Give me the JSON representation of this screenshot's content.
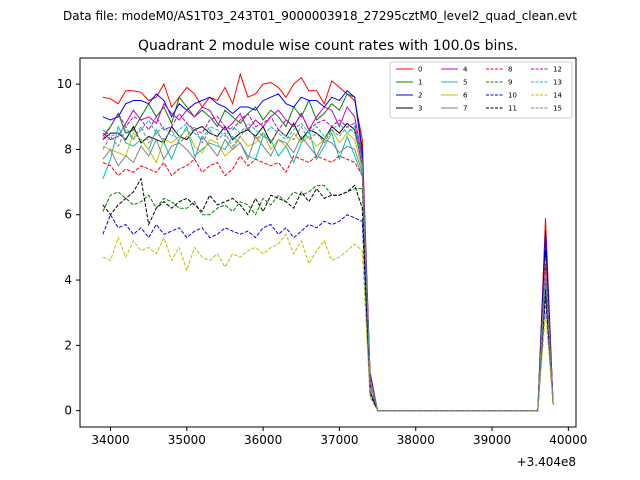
{
  "header": {
    "suptitle": "Data file: modeM0/AS1T03_243T01_9000003918_27295cztM0_level2_quad_clean.evt"
  },
  "chart_data": {
    "type": "line",
    "title": "Quadrant 2 module wise count rates with 100.0s bins.",
    "xlabel": "",
    "ylabel": "",
    "x_offset_label": "+3.404e8",
    "xlim": [
      33600,
      40100
    ],
    "ylim": [
      -0.5,
      10.8
    ],
    "x_ticks": [
      34000,
      35000,
      36000,
      37000,
      38000,
      39000,
      40000
    ],
    "x_tick_labels": [
      "34000",
      "35000",
      "36000",
      "37000",
      "38000",
      "39000",
      "40000"
    ],
    "y_ticks": [
      0,
      2,
      4,
      6,
      8,
      10
    ],
    "y_tick_labels": [
      "0",
      "2",
      "4",
      "6",
      "8",
      "10"
    ],
    "grid": false,
    "legend_position": "upper-right",
    "legend_columns": 4,
    "x_start": 33900,
    "x_step": 100,
    "drop_x": [
      37300,
      37400
    ],
    "plateau_x": [
      37500,
      39600
    ],
    "spike_x": [
      39700,
      39800
    ],
    "series": [
      {
        "name": "0",
        "color": "#ff0000",
        "dash": "solid",
        "pre": [
          9.6,
          9.55,
          9.4,
          9.8,
          9.8,
          9.75,
          9.5,
          9.6,
          10.0,
          9.3,
          9.6,
          9.9,
          9.7,
          9.3,
          9.6,
          9.5,
          9.9,
          9.4,
          10.3,
          9.6,
          9.7,
          10.0,
          10.05,
          9.9,
          9.6,
          10.0,
          10.2,
          9.8,
          9.8,
          9.4,
          10.1,
          9.9,
          9.7,
          9.5
        ],
        "drop": [
          8.3,
          1.2
        ],
        "spike": [
          5.9,
          0.2
        ]
      },
      {
        "name": "1",
        "color": "#008000",
        "dash": "solid",
        "pre": [
          8.4,
          8.7,
          9.1,
          8.5,
          8.6,
          9.0,
          9.4,
          9.0,
          9.3,
          8.8,
          9.6,
          9.3,
          9.0,
          9.2,
          9.0,
          8.7,
          9.2,
          9.0,
          8.8,
          9.1,
          9.3,
          8.9,
          9.2,
          9.0,
          8.7,
          9.3,
          9.0,
          9.5,
          8.9,
          9.1,
          9.4,
          9.2,
          9.7,
          9.6
        ],
        "drop": [
          7.8,
          1.0
        ],
        "spike": [
          5.3,
          0.2
        ]
      },
      {
        "name": "2",
        "color": "#0000ff",
        "dash": "solid",
        "pre": [
          9.0,
          8.9,
          9.0,
          9.4,
          9.5,
          9.5,
          9.4,
          9.7,
          9.5,
          9.0,
          9.4,
          9.2,
          9.4,
          9.5,
          9.6,
          9.4,
          9.3,
          9.1,
          9.3,
          9.3,
          9.2,
          9.5,
          9.6,
          9.7,
          9.4,
          9.3,
          9.6,
          9.5,
          9.5,
          9.3,
          9.6,
          9.5,
          9.8,
          9.6
        ],
        "drop": [
          8.0,
          1.1
        ],
        "spike": [
          5.5,
          0.2
        ]
      },
      {
        "name": "3",
        "color": "#000000",
        "dash": "solid",
        "pre": [
          8.3,
          8.5,
          8.5,
          8.3,
          8.7,
          8.2,
          8.4,
          8.3,
          8.2,
          8.7,
          8.4,
          8.3,
          8.6,
          8.7,
          8.5,
          8.4,
          8.7,
          8.3,
          8.5,
          8.6,
          8.4,
          8.7,
          8.2,
          8.6,
          8.4,
          8.8,
          8.3,
          8.6,
          8.5,
          8.3,
          8.7,
          8.5,
          8.8,
          8.6
        ],
        "drop": [
          7.5,
          0.9
        ],
        "spike": [
          4.9,
          0.2
        ]
      },
      {
        "name": "4",
        "color": "#c000c0",
        "dash": "solid",
        "pre": [
          8.5,
          8.3,
          8.4,
          8.8,
          9.2,
          8.9,
          9.0,
          8.8,
          9.4,
          9.1,
          8.9,
          9.2,
          9.0,
          9.3,
          9.2,
          8.8,
          8.6,
          8.8,
          9.1,
          8.6,
          8.9,
          8.7,
          9.0,
          9.2,
          8.9,
          8.7,
          9.1,
          8.6,
          9.0,
          9.3,
          9.2,
          8.7,
          9.3,
          9.0
        ],
        "drop": [
          7.7,
          1.0
        ],
        "spike": [
          4.7,
          0.2
        ]
      },
      {
        "name": "5",
        "color": "#00bfbf",
        "dash": "solid",
        "pre": [
          7.1,
          7.7,
          8.7,
          8.2,
          8.1,
          8.3,
          8.0,
          8.6,
          8.2,
          7.7,
          8.3,
          8.7,
          7.8,
          8.0,
          8.2,
          8.1,
          8.0,
          8.4,
          8.2,
          7.8,
          7.7,
          8.4,
          8.3,
          7.8,
          8.1,
          7.6,
          8.2,
          8.6,
          7.7,
          8.1,
          8.5,
          7.7,
          8.4,
          7.8
        ],
        "drop": [
          7.2,
          1.0
        ],
        "spike": [
          4.3,
          0.2
        ]
      },
      {
        "name": "6",
        "color": "#bfbf00",
        "dash": "solid",
        "pre": [
          8.1,
          8.0,
          7.9,
          7.8,
          8.5,
          8.3,
          8.0,
          7.6,
          8.3,
          8.2,
          8.4,
          8.6,
          8.1,
          7.9,
          8.3,
          8.2,
          7.8,
          8.0,
          8.4,
          8.1,
          8.2,
          8.5,
          8.0,
          8.3,
          8.1,
          8.5,
          8.2,
          8.4,
          8.1,
          8.3,
          8.6,
          8.2,
          8.5,
          8.3
        ],
        "drop": [
          7.4,
          0.9
        ],
        "spike": [
          4.6,
          0.2
        ]
      },
      {
        "name": "7",
        "color": "#808080",
        "dash": "solid",
        "pre": [
          7.7,
          8.0,
          7.5,
          7.8,
          7.6,
          8.1,
          7.8,
          8.3,
          7.7,
          8.1,
          8.2,
          8.0,
          7.7,
          8.4,
          8.1,
          7.8,
          8.3,
          8.0,
          8.2,
          7.7,
          8.4,
          8.1,
          7.8,
          8.3,
          8.2,
          7.9,
          8.4,
          8.1,
          7.8,
          8.3,
          8.2,
          7.9,
          8.1,
          8.0
        ],
        "drop": [
          7.3,
          0.9
        ],
        "spike": [
          4.4,
          0.2
        ]
      },
      {
        "name": "8",
        "color": "#ff0000",
        "dash": "dashed",
        "pre": [
          7.6,
          7.5,
          7.2,
          7.4,
          7.3,
          7.5,
          7.4,
          7.3,
          7.6,
          7.2,
          7.4,
          7.5,
          7.7,
          7.3,
          7.5,
          7.6,
          7.2,
          7.4,
          7.8,
          7.5,
          7.7,
          7.6,
          7.5,
          7.6,
          7.3,
          7.8,
          7.7,
          7.6,
          7.8,
          7.7,
          7.6,
          7.8,
          7.7,
          7.6
        ],
        "drop": [
          7.2,
          0.8
        ],
        "spike": [
          3.9,
          0.2
        ]
      },
      {
        "name": "9",
        "color": "#008000",
        "dash": "dashed",
        "pre": [
          6.1,
          6.6,
          6.7,
          6.5,
          6.3,
          6.4,
          6.6,
          6.2,
          6.5,
          6.4,
          6.2,
          6.2,
          6.4,
          6.0,
          6.0,
          6.2,
          6.3,
          6.1,
          6.4,
          6.3,
          6.0,
          6.5,
          6.3,
          6.6,
          6.4,
          6.7,
          6.6,
          6.7,
          6.9,
          6.9,
          6.6,
          6.6,
          6.7,
          6.8
        ],
        "drop": [
          6.8,
          0.6
        ],
        "spike": [
          3.8,
          0.2
        ]
      },
      {
        "name": "10",
        "color": "#0000ff",
        "dash": "dashed",
        "pre": [
          5.4,
          6.0,
          5.6,
          5.7,
          5.4,
          5.6,
          5.3,
          5.7,
          5.4,
          5.5,
          5.6,
          5.3,
          5.5,
          5.6,
          5.3,
          5.4,
          5.6,
          5.5,
          5.4,
          5.5,
          5.3,
          5.6,
          5.7,
          5.4,
          5.6,
          5.3,
          5.5,
          5.7,
          5.6,
          5.8,
          5.7,
          5.8,
          6.0,
          5.9
        ],
        "drop": [
          5.8,
          0.5
        ],
        "spike": [
          3.5,
          0.2
        ]
      },
      {
        "name": "11",
        "color": "#000000",
        "dash": "dashed",
        "pre": [
          6.3,
          6.0,
          6.3,
          6.5,
          6.7,
          7.1,
          5.7,
          6.2,
          6.4,
          6.2,
          6.4,
          6.5,
          6.3,
          6.1,
          6.6,
          6.3,
          6.4,
          6.5,
          6.3,
          6.0,
          6.5,
          6.1,
          6.6,
          6.5,
          6.4,
          6.2,
          6.7,
          6.4,
          6.8,
          6.5,
          6.6,
          6.6,
          6.7,
          6.9
        ],
        "drop": [
          6.2,
          0.6
        ],
        "spike": [
          3.7,
          0.2
        ]
      },
      {
        "name": "12",
        "color": "#c000c0",
        "dash": "dashed",
        "pre": [
          8.3,
          8.7,
          9.1,
          8.7,
          9.0,
          8.9,
          8.6,
          9.0,
          8.6,
          8.7,
          9.1,
          8.8,
          8.6,
          8.5,
          8.9,
          9.0,
          8.7,
          8.6,
          8.9,
          9.1,
          8.7,
          8.8,
          9.0,
          8.6,
          8.9,
          8.7,
          9.1,
          8.6,
          8.8,
          8.9,
          8.7,
          8.9,
          8.7,
          8.8
        ],
        "drop": [
          7.5,
          1.0
        ],
        "spike": [
          4.5,
          0.2
        ]
      },
      {
        "name": "13",
        "color": "#00bfbf",
        "dash": "dashed",
        "pre": [
          8.6,
          8.4,
          8.5,
          8.7,
          8.3,
          8.6,
          8.9,
          8.5,
          8.7,
          8.4,
          8.6,
          8.8,
          8.5,
          8.3,
          8.7,
          8.6,
          8.4,
          8.7,
          8.5,
          8.8,
          8.6,
          8.4,
          8.7,
          8.5,
          8.3,
          8.6,
          8.8,
          8.5,
          8.7,
          8.4,
          8.6,
          8.8,
          8.5,
          8.7
        ],
        "drop": [
          7.6,
          1.0
        ],
        "spike": [
          4.2,
          0.2
        ]
      },
      {
        "name": "14",
        "color": "#bfbf00",
        "dash": "dashed",
        "pre": [
          4.7,
          4.6,
          5.3,
          4.7,
          5.2,
          4.9,
          5.0,
          4.8,
          5.3,
          4.6,
          5.0,
          4.3,
          5.0,
          4.7,
          4.6,
          4.8,
          4.4,
          4.8,
          4.7,
          4.9,
          5.0,
          4.8,
          5.0,
          5.1,
          5.4,
          4.8,
          5.2,
          4.5,
          4.9,
          5.2,
          4.6,
          4.7,
          4.9,
          5.1
        ],
        "drop": [
          4.9,
          0.4
        ],
        "spike": [
          3.0,
          0.2
        ]
      },
      {
        "name": "15",
        "color": "#808080",
        "dash": "dashed",
        "pre": [
          8.0,
          8.4,
          8.1,
          8.6,
          8.3,
          8.7,
          8.2,
          8.5,
          8.3,
          8.6,
          8.2,
          8.4,
          8.7,
          8.2,
          8.6,
          8.3,
          8.5,
          8.1,
          8.4,
          8.7,
          8.3,
          8.5,
          8.2,
          8.6,
          8.4,
          8.3,
          8.7,
          8.3,
          8.5,
          8.2,
          8.6,
          8.4,
          8.7,
          8.5
        ],
        "drop": [
          7.6,
          0.9
        ],
        "spike": [
          4.1,
          0.2
        ]
      }
    ]
  }
}
